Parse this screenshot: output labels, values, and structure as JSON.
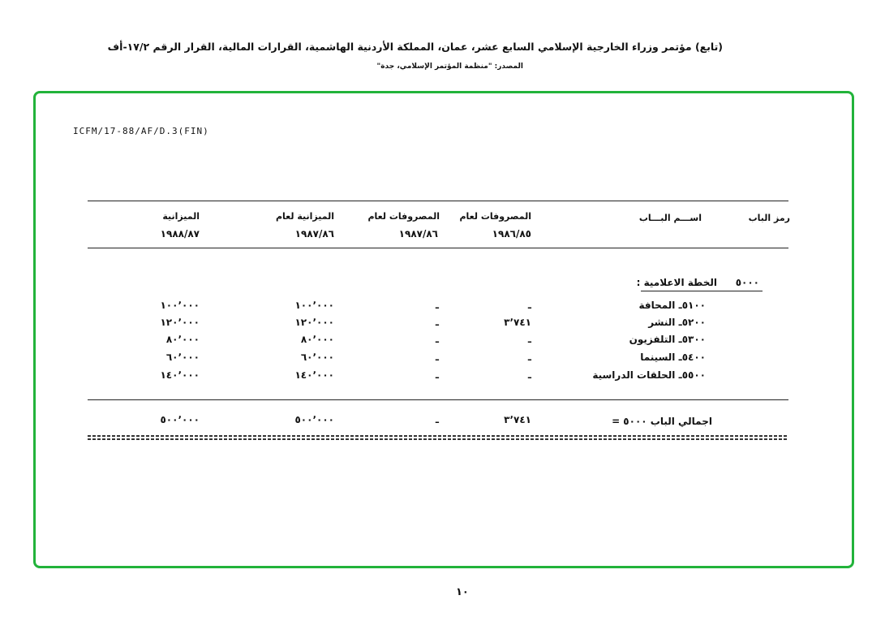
{
  "header": {
    "title": "(تابع) مؤتمر وزراء الخارجية الإسلامي السابع عشر، عمان، المملكة الأردنية الهاشمية، القرارات المالية، القرار الرقم ١٧/٢-أف",
    "source": "المصدر: \"منظمة المؤتمر الإسلامي، جدة\""
  },
  "document": {
    "reference": "ICFM/17-88/AF/D.3(FIN)",
    "columns": {
      "code": "رمز الباب",
      "name": "اســـم البـــاب",
      "exp_8586": {
        "label": "المصروفات لعام",
        "year": "١٩٨٦/٨٥"
      },
      "exp_8687": {
        "label": "المصروفات لعام",
        "year": "١٩٨٧/٨٦"
      },
      "bud_8687": {
        "label": "الميزانية لعام",
        "year": "١٩٨٧/٨٦"
      },
      "bud_8788": {
        "label": "الميزانية",
        "year": "١٩٨٨/٨٧"
      }
    },
    "section": {
      "code": "٥٠٠٠",
      "title": "الخطة الاعلامية :"
    },
    "rows": [
      {
        "name": "٥١٠٠ـ المحافة",
        "exp_8586": "ـ",
        "exp_8687": "ـ",
        "bud_8687": "١٠٠٬٠٠٠",
        "bud_8788": "١٠٠٬٠٠٠"
      },
      {
        "name": "٥٢٠٠ـ النشر",
        "exp_8586": "٣٬٧٤١",
        "exp_8687": "ـ",
        "bud_8687": "١٢٠٬٠٠٠",
        "bud_8788": "١٢٠٬٠٠٠"
      },
      {
        "name": "٥٣٠٠ـ التلفزيون",
        "exp_8586": "ـ",
        "exp_8687": "ـ",
        "bud_8687": "٨٠٬٠٠٠",
        "bud_8788": "٨٠٬٠٠٠"
      },
      {
        "name": "٥٤٠٠ـ السينما",
        "exp_8586": "ـ",
        "exp_8687": "ـ",
        "bud_8687": "٦٠٬٠٠٠",
        "bud_8788": "٦٠٬٠٠٠"
      },
      {
        "name": "٥٥٠٠ـ الحلقات الدراسية",
        "exp_8586": "ـ",
        "exp_8687": "ـ",
        "bud_8687": "١٤٠٬٠٠٠",
        "bud_8788": "١٤٠٬٠٠٠"
      }
    ],
    "total": {
      "name": "اجمالي الباب ٥٠٠٠ =",
      "exp_8586": "٣٬٧٤١",
      "exp_8687": "ـ",
      "bud_8687": "٥٠٠٬٠٠٠",
      "bud_8788": "٥٠٠٬٠٠٠"
    }
  },
  "footer": {
    "page_number": "١٠"
  },
  "colors": {
    "frame": "#22b33a"
  }
}
